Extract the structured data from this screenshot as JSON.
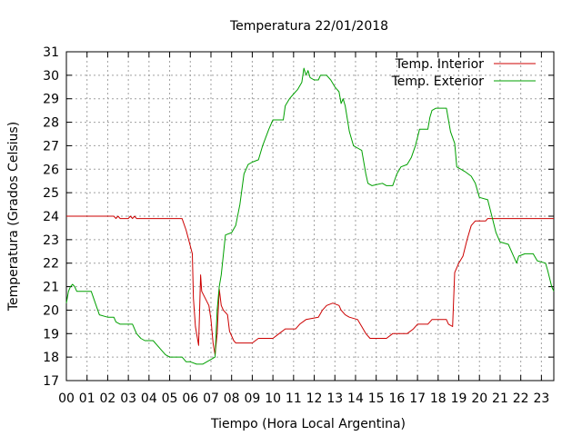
{
  "chart_data": {
    "type": "line",
    "title": "Temperatura 22/01/2018",
    "xlabel": "Tiempo (Hora Local Argentina)",
    "ylabel": "Temperatura (Grados Celsius)",
    "xlim": [
      0,
      23.6
    ],
    "ylim": [
      17,
      31
    ],
    "x_ticks": [
      "00",
      "01",
      "02",
      "03",
      "04",
      "05",
      "06",
      "07",
      "08",
      "09",
      "10",
      "11",
      "12",
      "13",
      "14",
      "15",
      "16",
      "17",
      "18",
      "19",
      "20",
      "21",
      "22",
      "23"
    ],
    "y_ticks": [
      17,
      18,
      19,
      20,
      21,
      22,
      23,
      24,
      25,
      26,
      27,
      28,
      29,
      30,
      31
    ],
    "grid": true,
    "legend_position": "top-right",
    "series": [
      {
        "name": "Temp. Interior",
        "color": "#cc0000",
        "points": [
          [
            0.0,
            24.0
          ],
          [
            2.3,
            24.0
          ],
          [
            2.4,
            23.9
          ],
          [
            2.5,
            24.0
          ],
          [
            2.6,
            23.9
          ],
          [
            3.0,
            23.9
          ],
          [
            3.1,
            24.0
          ],
          [
            3.2,
            23.9
          ],
          [
            3.3,
            24.0
          ],
          [
            3.4,
            23.9
          ],
          [
            5.6,
            23.9
          ],
          [
            5.8,
            23.4
          ],
          [
            5.95,
            22.9
          ],
          [
            6.1,
            22.4
          ],
          [
            6.15,
            20.5
          ],
          [
            6.25,
            19.3
          ],
          [
            6.4,
            18.5
          ],
          [
            6.5,
            21.5
          ],
          [
            6.55,
            20.8
          ],
          [
            6.9,
            20.2
          ],
          [
            7.0,
            19.6
          ],
          [
            7.1,
            18.6
          ],
          [
            7.2,
            18.1
          ],
          [
            7.3,
            19.0
          ],
          [
            7.4,
            20.9
          ],
          [
            7.5,
            20.2
          ],
          [
            7.6,
            20.0
          ],
          [
            7.8,
            19.8
          ],
          [
            7.9,
            19.1
          ],
          [
            8.1,
            18.7
          ],
          [
            8.2,
            18.6
          ],
          [
            9.0,
            18.6
          ],
          [
            9.3,
            18.8
          ],
          [
            10.0,
            18.8
          ],
          [
            10.3,
            19.0
          ],
          [
            10.6,
            19.2
          ],
          [
            11.1,
            19.2
          ],
          [
            11.3,
            19.4
          ],
          [
            11.6,
            19.6
          ],
          [
            12.2,
            19.7
          ],
          [
            12.4,
            20.0
          ],
          [
            12.6,
            20.2
          ],
          [
            12.9,
            20.3
          ],
          [
            13.2,
            20.2
          ],
          [
            13.3,
            20.0
          ],
          [
            13.5,
            19.8
          ],
          [
            13.7,
            19.7
          ],
          [
            14.1,
            19.6
          ],
          [
            14.3,
            19.3
          ],
          [
            14.5,
            19.0
          ],
          [
            14.7,
            18.8
          ],
          [
            15.5,
            18.8
          ],
          [
            15.8,
            19.0
          ],
          [
            16.5,
            19.0
          ],
          [
            16.8,
            19.2
          ],
          [
            17.0,
            19.4
          ],
          [
            17.5,
            19.4
          ],
          [
            17.7,
            19.6
          ],
          [
            18.4,
            19.6
          ],
          [
            18.5,
            19.4
          ],
          [
            18.7,
            19.3
          ],
          [
            18.8,
            21.6
          ],
          [
            19.0,
            22.0
          ],
          [
            19.2,
            22.3
          ],
          [
            19.4,
            23.0
          ],
          [
            19.6,
            23.6
          ],
          [
            19.8,
            23.8
          ],
          [
            20.3,
            23.8
          ],
          [
            20.4,
            23.9
          ],
          [
            23.6,
            23.9
          ]
        ]
      },
      {
        "name": "Temp. Exterior",
        "color": "#00a000",
        "points": [
          [
            0.0,
            20.3
          ],
          [
            0.1,
            20.8
          ],
          [
            0.2,
            21.0
          ],
          [
            0.3,
            21.1
          ],
          [
            0.4,
            21.0
          ],
          [
            0.5,
            20.8
          ],
          [
            1.2,
            20.8
          ],
          [
            1.4,
            20.3
          ],
          [
            1.6,
            19.8
          ],
          [
            2.0,
            19.7
          ],
          [
            2.3,
            19.7
          ],
          [
            2.4,
            19.5
          ],
          [
            2.6,
            19.4
          ],
          [
            3.2,
            19.4
          ],
          [
            3.4,
            19.0
          ],
          [
            3.6,
            18.8
          ],
          [
            3.8,
            18.7
          ],
          [
            4.2,
            18.7
          ],
          [
            4.4,
            18.5
          ],
          [
            4.6,
            18.3
          ],
          [
            4.8,
            18.1
          ],
          [
            5.0,
            18.0
          ],
          [
            5.6,
            18.0
          ],
          [
            5.8,
            17.8
          ],
          [
            6.0,
            17.8
          ],
          [
            6.3,
            17.7
          ],
          [
            6.6,
            17.7
          ],
          [
            6.8,
            17.8
          ],
          [
            7.0,
            17.9
          ],
          [
            7.2,
            18.0
          ],
          [
            7.3,
            20.0
          ],
          [
            7.4,
            21.0
          ],
          [
            7.5,
            21.5
          ],
          [
            7.7,
            23.2
          ],
          [
            8.0,
            23.3
          ],
          [
            8.2,
            23.6
          ],
          [
            8.4,
            24.5
          ],
          [
            8.6,
            25.8
          ],
          [
            8.8,
            26.2
          ],
          [
            9.0,
            26.3
          ],
          [
            9.3,
            26.4
          ],
          [
            9.5,
            27.0
          ],
          [
            9.8,
            27.7
          ],
          [
            10.0,
            28.1
          ],
          [
            10.5,
            28.1
          ],
          [
            10.6,
            28.7
          ],
          [
            10.8,
            29.0
          ],
          [
            11.0,
            29.2
          ],
          [
            11.2,
            29.4
          ],
          [
            11.4,
            29.7
          ],
          [
            11.5,
            30.3
          ],
          [
            11.6,
            30.0
          ],
          [
            11.7,
            30.2
          ],
          [
            11.8,
            29.9
          ],
          [
            12.0,
            29.8
          ],
          [
            12.2,
            29.8
          ],
          [
            12.3,
            30.0
          ],
          [
            12.6,
            30.0
          ],
          [
            12.8,
            29.8
          ],
          [
            13.0,
            29.5
          ],
          [
            13.2,
            29.3
          ],
          [
            13.3,
            28.8
          ],
          [
            13.4,
            29.0
          ],
          [
            13.5,
            28.7
          ],
          [
            13.7,
            27.6
          ],
          [
            13.9,
            27.0
          ],
          [
            14.1,
            26.9
          ],
          [
            14.3,
            26.8
          ],
          [
            14.5,
            25.8
          ],
          [
            14.6,
            25.4
          ],
          [
            14.8,
            25.3
          ],
          [
            15.3,
            25.4
          ],
          [
            15.5,
            25.3
          ],
          [
            15.8,
            25.3
          ],
          [
            16.0,
            25.8
          ],
          [
            16.2,
            26.1
          ],
          [
            16.5,
            26.2
          ],
          [
            16.7,
            26.5
          ],
          [
            16.9,
            27.0
          ],
          [
            17.1,
            27.7
          ],
          [
            17.5,
            27.7
          ],
          [
            17.6,
            28.2
          ],
          [
            17.7,
            28.5
          ],
          [
            17.9,
            28.6
          ],
          [
            18.4,
            28.6
          ],
          [
            18.6,
            27.6
          ],
          [
            18.8,
            27.1
          ],
          [
            18.9,
            26.1
          ],
          [
            19.3,
            25.9
          ],
          [
            19.6,
            25.7
          ],
          [
            19.8,
            25.4
          ],
          [
            20.0,
            24.8
          ],
          [
            20.4,
            24.7
          ],
          [
            20.6,
            24.0
          ],
          [
            20.8,
            23.3
          ],
          [
            21.0,
            22.9
          ],
          [
            21.4,
            22.8
          ],
          [
            21.6,
            22.4
          ],
          [
            21.8,
            22.0
          ],
          [
            21.9,
            22.3
          ],
          [
            22.2,
            22.4
          ],
          [
            22.6,
            22.4
          ],
          [
            22.8,
            22.1
          ],
          [
            23.2,
            22.0
          ],
          [
            23.3,
            21.7
          ],
          [
            23.5,
            21.0
          ],
          [
            23.6,
            20.8
          ]
        ]
      }
    ]
  }
}
